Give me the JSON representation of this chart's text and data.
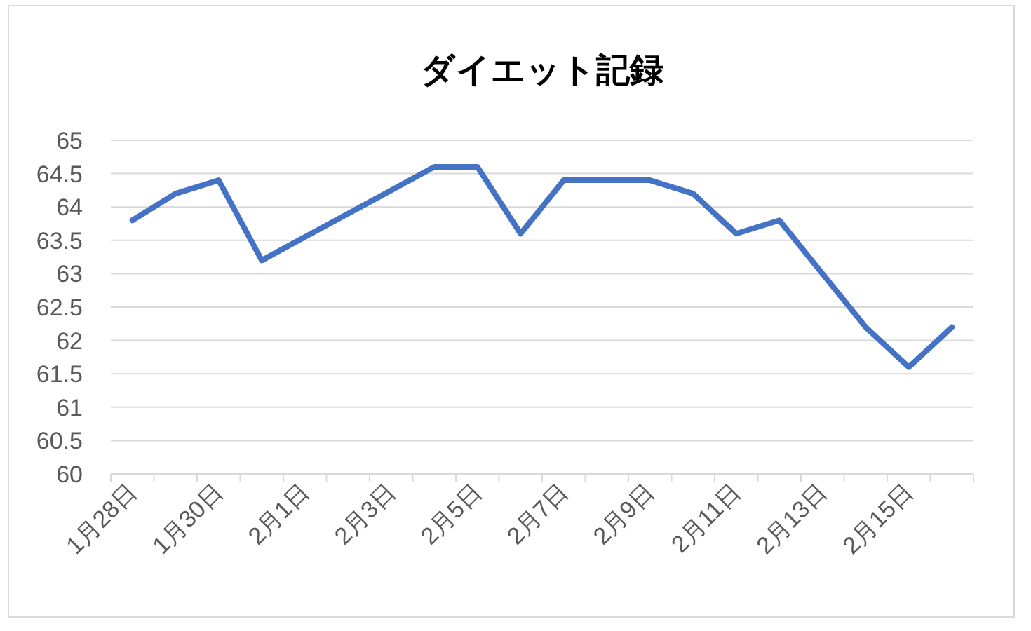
{
  "chart_data": {
    "type": "line",
    "title": "ダイエット記録",
    "categories": [
      "1月28日",
      null,
      "1月30日",
      null,
      "2月1日",
      null,
      "2月3日",
      null,
      "2月5日",
      null,
      "2月7日",
      null,
      "2月9日",
      null,
      "2月11日",
      null,
      "2月13日",
      null,
      "2月15日",
      null
    ],
    "series": [
      {
        "color": "#4472c4",
        "values": [
          63.8,
          64.2,
          64.4,
          63.2,
          63.55,
          63.9,
          64.25,
          64.6,
          64.6,
          63.6,
          64.4,
          64.4,
          64.4,
          64.2,
          63.6,
          63.8,
          63.0,
          62.2,
          61.6,
          62.2
        ]
      }
    ],
    "ylim": [
      60,
      65
    ],
    "yticks": [
      60,
      60.5,
      61,
      61.5,
      62,
      62.5,
      63,
      63.5,
      64,
      64.5,
      65
    ],
    "grid": "y",
    "marker": "none",
    "line_style": "solid"
  }
}
